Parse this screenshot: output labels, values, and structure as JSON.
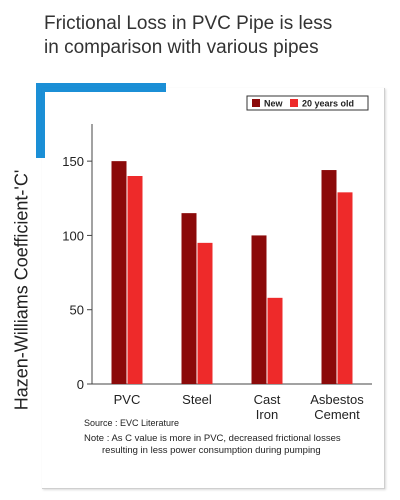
{
  "title_line1": "Frictional Loss in PVC Pipe is less",
  "title_line2": "in comparison with various pipes",
  "source": "Source : EVC Literature",
  "note_line1": "Note : As C value is more in PVC, decreased frictional losses",
  "note_line2": "resulting in less power consumption during pumping",
  "colors": {
    "accent": "#1b8fd6"
  },
  "chart_data": {
    "type": "bar",
    "title": "",
    "ylabel": "Hazen-Williams Coefficient-'C'",
    "xlabel": "",
    "categories": [
      [
        "PVC"
      ],
      [
        "Steel"
      ],
      [
        "Cast",
        "Iron"
      ],
      [
        "Asbestos",
        "Cement"
      ]
    ],
    "series": [
      {
        "name": "New",
        "color": "#8b0a0a",
        "values": [
          150,
          115,
          100,
          144
        ]
      },
      {
        "name": "20 years old",
        "color": "#ee2a2a",
        "values": [
          140,
          95,
          58,
          129
        ]
      }
    ],
    "ylim": [
      0,
      175
    ],
    "yticks": [
      0,
      50,
      100,
      150
    ],
    "legend": "top-right",
    "grid": false
  }
}
